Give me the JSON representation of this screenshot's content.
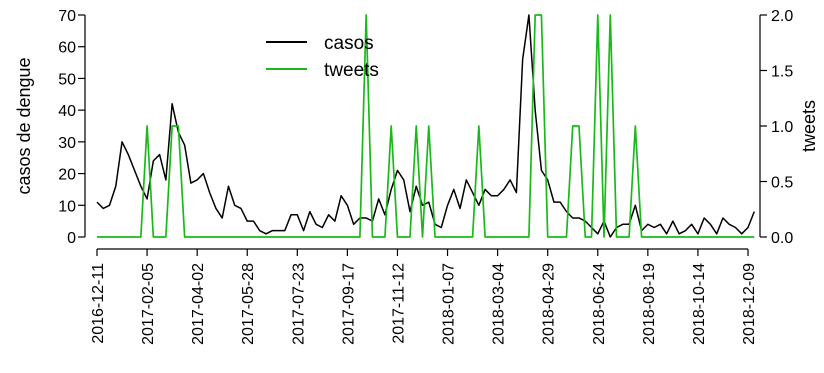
{
  "chart_data": {
    "type": "line",
    "ylabel_left": "casos de dengue",
    "ylabel_right": "tweets",
    "ylim_left": [
      0,
      70
    ],
    "ylim_right": [
      0,
      2
    ],
    "yticks_left": [
      "0",
      "10",
      "20",
      "30",
      "40",
      "50",
      "60",
      "70"
    ],
    "yticks_right": [
      "0.0",
      "0.5",
      "1.0",
      "1.5",
      "2.0"
    ],
    "xlim": [
      "2016-12-11",
      "2018-12-09"
    ],
    "xtick_labels": [
      "2016-12-11",
      "2017-02-05",
      "2017-04-02",
      "2017-05-28",
      "2017-07-23",
      "2017-09-17",
      "2017-11-12",
      "2018-01-07",
      "2018-03-04",
      "2018-04-29",
      "2018-06-24",
      "2018-08-19",
      "2018-10-14",
      "2018-12-09"
    ],
    "legend_position": "top-center",
    "grid": false,
    "series": [
      {
        "name": "casos",
        "color": "#000000",
        "axis": "left",
        "values": [
          11,
          9,
          10,
          16,
          30,
          26,
          21,
          16,
          12,
          24,
          26,
          18,
          42,
          33,
          29,
          17,
          18,
          20,
          14,
          9,
          6,
          16,
          10,
          9,
          5,
          5,
          2,
          1,
          2,
          2,
          2,
          7,
          7,
          2,
          8,
          4,
          3,
          7,
          5,
          13,
          10,
          4,
          6,
          6,
          5,
          12,
          7,
          15,
          21,
          18,
          8,
          16,
          10,
          11,
          4,
          3,
          10,
          15,
          9,
          18,
          14,
          10,
          15,
          13,
          13,
          15,
          18,
          14,
          56,
          70,
          40,
          21,
          18,
          11,
          11,
          8,
          6,
          6,
          5,
          3,
          1,
          5,
          0,
          3,
          4,
          4,
          10,
          2,
          4,
          3,
          4,
          1,
          5,
          1,
          2,
          4,
          1,
          6,
          4,
          1,
          6,
          4,
          3,
          1,
          3,
          8
        ]
      },
      {
        "name": "tweets",
        "color": "#1ab91a",
        "axis": "right",
        "values": [
          0,
          0,
          0,
          0,
          0,
          0,
          0,
          0,
          1,
          0,
          0,
          0,
          1,
          1,
          0,
          0,
          0,
          0,
          0,
          0,
          0,
          0,
          0,
          0,
          0,
          0,
          0,
          0,
          0,
          0,
          0,
          0,
          0,
          0,
          0,
          0,
          0,
          0,
          0,
          0,
          0,
          0,
          0,
          2,
          0,
          0,
          0,
          1,
          0,
          0,
          0,
          1,
          0,
          1,
          0,
          0,
          0,
          0,
          0,
          0,
          0,
          1,
          0,
          0,
          0,
          0,
          0,
          0,
          0,
          0,
          2,
          2,
          0,
          0,
          0,
          0,
          1,
          1,
          0,
          0,
          2,
          0,
          2,
          0,
          0,
          0,
          1,
          0,
          0,
          0,
          0,
          0,
          0,
          0,
          0,
          0,
          0,
          0,
          0,
          0,
          0,
          0,
          0,
          0,
          0,
          0
        ]
      }
    ]
  }
}
